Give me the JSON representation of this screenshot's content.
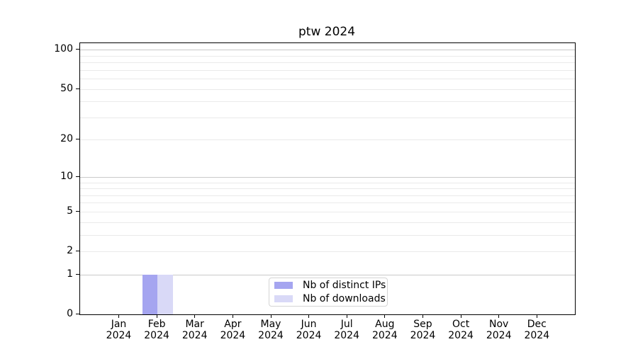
{
  "chart_data": {
    "type": "bar",
    "title": "ptw 2024",
    "categories": [
      "Jan",
      "Feb",
      "Mar",
      "Apr",
      "May",
      "Jun",
      "Jul",
      "Aug",
      "Sep",
      "Oct",
      "Nov",
      "Dec"
    ],
    "category_year": "2024",
    "series": [
      {
        "name": "Nb of distinct IPs",
        "color": "#a5a5f0",
        "values": [
          0,
          1,
          0,
          0,
          0,
          0,
          0,
          0,
          0,
          0,
          0,
          0
        ]
      },
      {
        "name": "Nb of downloads",
        "color": "#d9d9f7",
        "values": [
          0,
          1,
          0,
          0,
          0,
          0,
          0,
          0,
          0,
          0,
          0,
          0
        ]
      }
    ],
    "xlabel": "",
    "ylabel": "",
    "yscale": "log1p",
    "ylim": [
      0,
      112
    ],
    "y_tick_labels": [
      0,
      1,
      2,
      5,
      10,
      20,
      50,
      100
    ],
    "y_major_gridlines": [
      1,
      10,
      100
    ],
    "y_minor_gridlines": [
      2,
      3,
      4,
      5,
      6,
      7,
      8,
      9,
      20,
      30,
      40,
      50,
      60,
      70,
      80,
      90
    ],
    "grid": "horizontal",
    "legend_position": "lower center"
  },
  "colors": {
    "background": "#ffffff",
    "text": "#000000",
    "axis": "#000000",
    "grid_major": "#c9c9c9",
    "grid_minor": "#eaeaea",
    "bar_distinct_ips": "#a5a5f0",
    "bar_downloads": "#d9d9f7",
    "legend_border": "#d4d4d4"
  }
}
